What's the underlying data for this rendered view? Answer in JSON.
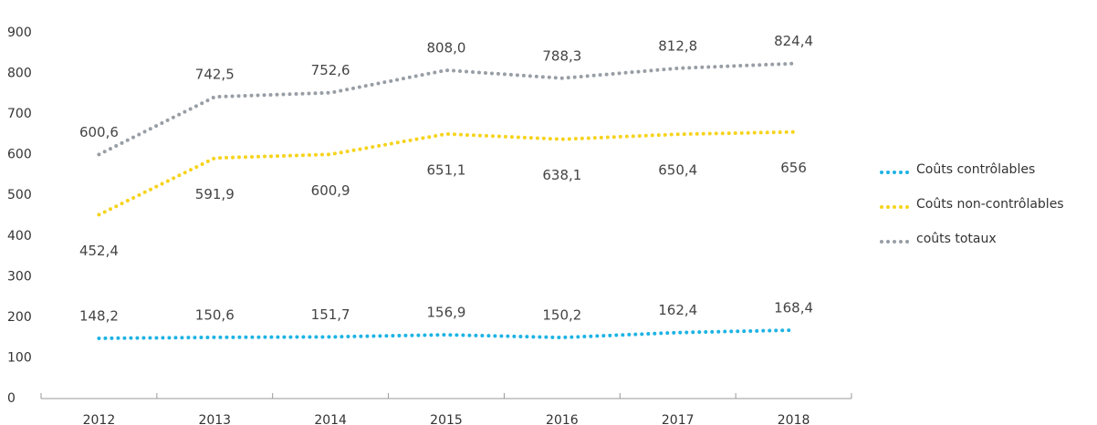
{
  "chart_data": {
    "type": "line",
    "categories": [
      "2012",
      "2013",
      "2014",
      "2015",
      "2016",
      "2017",
      "2018"
    ],
    "series": [
      {
        "name": "Coûts contrôlables",
        "color": "#1db3e4",
        "values": [
          148.2,
          150.6,
          151.7,
          156.9,
          150.2,
          162.4,
          168.4
        ],
        "value_labels": [
          "148,2",
          "150,6",
          "151,7",
          "156,9",
          "150,2",
          "162,4",
          "168,4"
        ]
      },
      {
        "name": "Coûts non-contrôlables",
        "color": "#f6d31c",
        "values": [
          452.4,
          591.9,
          600.9,
          651.1,
          638.1,
          650.4,
          656
        ],
        "value_labels": [
          "452,4",
          "591,9",
          "600,9",
          "651,1",
          "638,1",
          "650,4",
          "656"
        ]
      },
      {
        "name": "coûts totaux",
        "color": "#989ea5",
        "values": [
          600.6,
          742.5,
          752.6,
          808.0,
          788.3,
          812.8,
          824.4
        ],
        "value_labels": [
          "600,6",
          "742,5",
          "752,6",
          "808,0",
          "788,3",
          "812,8",
          "824,4"
        ]
      }
    ],
    "ylim": [
      0,
      900
    ],
    "yticks": [
      0,
      100,
      200,
      300,
      400,
      500,
      600,
      700,
      800,
      900
    ],
    "legend": "right"
  }
}
